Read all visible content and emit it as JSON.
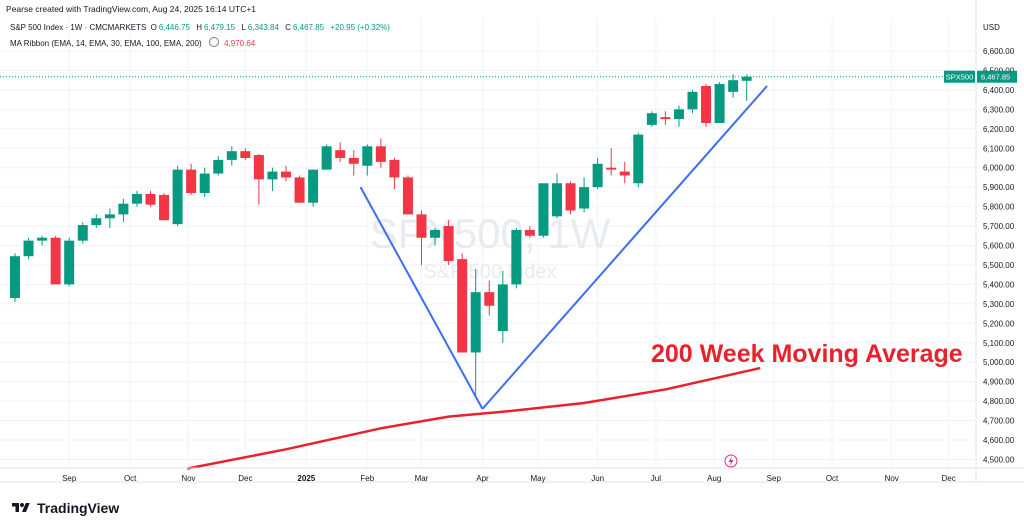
{
  "header": {
    "credit": "Pearse created with TradingView.com, Aug 24, 2025 16:14 UTC+1",
    "symbol_title": "S&P 500 Index · 1W · CMCMARKETS",
    "ohlc": {
      "open_label": "O",
      "open": "6,446.75",
      "high_label": "H",
      "high": "6,479.15",
      "low_label": "L",
      "low": "6,343.84",
      "close_label": "C",
      "close": "6,467.85",
      "change": "+20.95 (+0.32%)"
    },
    "indicator_name": "MA Ribbon (EMA, 14, EMA, 30, EMA, 100, EMA, 200)",
    "indicator_value": "4,970.64",
    "currency": "USD"
  },
  "watermark": {
    "symbol": "SPX500, 1W",
    "name": "S&P 500 Index"
  },
  "price_tag": {
    "symbol": "SPX500",
    "value": "6,467.85"
  },
  "annotation": {
    "text": "200 Week Moving Average"
  },
  "footer": {
    "brand": "TradingView"
  },
  "colors": {
    "up": "#089981",
    "down": "#f23645",
    "ma": "#e8222c",
    "trendline": "#3b6ef0",
    "grid": "#f0f3fa"
  },
  "icons": {
    "logo": "tradingview-logo-icon",
    "flash": "flash-icon",
    "visibility": "eye-slash-icon"
  },
  "chart_data": {
    "type": "candlestick",
    "y_axis": {
      "ticks": [
        "6,600.00",
        "6,500.00",
        "6,400.00",
        "6,300.00",
        "6,200.00",
        "6,100.00",
        "6,000.00",
        "5,900.00",
        "5,800.00",
        "5,700.00",
        "5,600.00",
        "5,500.00",
        "5,400.00",
        "5,300.00",
        "5,200.00",
        "5,100.00",
        "5,000.00",
        "4,900.00",
        "4,800.00",
        "4,700.00",
        "4,600.00",
        "4,500.00"
      ],
      "tick_values": [
        6600,
        6500,
        6400,
        6300,
        6200,
        6100,
        6000,
        5900,
        5800,
        5700,
        5600,
        5500,
        5400,
        5300,
        5200,
        5100,
        5000,
        4900,
        4800,
        4700,
        4600,
        4500
      ],
      "range": [
        4450,
        6700
      ]
    },
    "x_axis": {
      "start_week": "2024-08-05",
      "ticks": [
        {
          "label": "Sep",
          "week": 4
        },
        {
          "label": "Oct",
          "week": 8.5
        },
        {
          "label": "Nov",
          "week": 12.8
        },
        {
          "label": "Dec",
          "week": 17
        },
        {
          "label": "2025",
          "week": 21.5,
          "bold": true
        },
        {
          "label": "Feb",
          "week": 26
        },
        {
          "label": "Mar",
          "week": 30
        },
        {
          "label": "Apr",
          "week": 34.5
        },
        {
          "label": "May",
          "week": 38.6
        },
        {
          "label": "Jun",
          "week": 43
        },
        {
          "label": "Jul",
          "week": 47.3
        },
        {
          "label": "Aug",
          "week": 51.6
        },
        {
          "label": "Sep",
          "week": 56
        },
        {
          "label": "Oct",
          "week": 60.3
        },
        {
          "label": "Nov",
          "week": 64.7
        },
        {
          "label": "Dec",
          "week": 68.9
        }
      ]
    },
    "candles": [
      {
        "o": 5330,
        "h": 5560,
        "l": 5310,
        "c": 5545
      },
      {
        "o": 5545,
        "h": 5640,
        "l": 5530,
        "c": 5625
      },
      {
        "o": 5625,
        "h": 5650,
        "l": 5600,
        "c": 5640
      },
      {
        "o": 5640,
        "h": 5650,
        "l": 5400,
        "c": 5400
      },
      {
        "o": 5400,
        "h": 5640,
        "l": 5390,
        "c": 5625
      },
      {
        "o": 5625,
        "h": 5720,
        "l": 5610,
        "c": 5705
      },
      {
        "o": 5705,
        "h": 5760,
        "l": 5690,
        "c": 5740
      },
      {
        "o": 5740,
        "h": 5790,
        "l": 5690,
        "c": 5760
      },
      {
        "o": 5760,
        "h": 5840,
        "l": 5720,
        "c": 5815
      },
      {
        "o": 5815,
        "h": 5880,
        "l": 5800,
        "c": 5865
      },
      {
        "o": 5865,
        "h": 5880,
        "l": 5800,
        "c": 5810
      },
      {
        "o": 5860,
        "h": 5870,
        "l": 5730,
        "c": 5730
      },
      {
        "o": 5710,
        "h": 6010,
        "l": 5700,
        "c": 5990
      },
      {
        "o": 5990,
        "h": 6020,
        "l": 5860,
        "c": 5870
      },
      {
        "o": 5870,
        "h": 6000,
        "l": 5850,
        "c": 5970
      },
      {
        "o": 5970,
        "h": 6060,
        "l": 5960,
        "c": 6040
      },
      {
        "o": 6040,
        "h": 6110,
        "l": 6010,
        "c": 6085
      },
      {
        "o": 6085,
        "h": 6100,
        "l": 6040,
        "c": 6050
      },
      {
        "o": 6065,
        "h": 6070,
        "l": 5810,
        "c": 5940
      },
      {
        "o": 5940,
        "h": 6000,
        "l": 5880,
        "c": 5980
      },
      {
        "o": 5980,
        "h": 6010,
        "l": 5930,
        "c": 5950
      },
      {
        "o": 5950,
        "h": 5960,
        "l": 5820,
        "c": 5820
      },
      {
        "o": 5820,
        "h": 5990,
        "l": 5800,
        "c": 5990
      },
      {
        "o": 5990,
        "h": 6120,
        "l": 5990,
        "c": 6110
      },
      {
        "o": 6090,
        "h": 6130,
        "l": 6030,
        "c": 6050
      },
      {
        "o": 6050,
        "h": 6090,
        "l": 5960,
        "c": 6020
      },
      {
        "o": 6010,
        "h": 6120,
        "l": 5960,
        "c": 6110
      },
      {
        "o": 6110,
        "h": 6150,
        "l": 6000,
        "c": 6030
      },
      {
        "o": 6040,
        "h": 6050,
        "l": 5890,
        "c": 5950
      },
      {
        "o": 5950,
        "h": 5960,
        "l": 5760,
        "c": 5760
      },
      {
        "o": 5760,
        "h": 5780,
        "l": 5500,
        "c": 5640
      },
      {
        "o": 5640,
        "h": 5690,
        "l": 5600,
        "c": 5680
      },
      {
        "o": 5700,
        "h": 5730,
        "l": 5500,
        "c": 5520
      },
      {
        "o": 5530,
        "h": 5560,
        "l": 5050,
        "c": 5050
      },
      {
        "o": 5050,
        "h": 5480,
        "l": 4830,
        "c": 5360
      },
      {
        "o": 5360,
        "h": 5420,
        "l": 5240,
        "c": 5290
      },
      {
        "o": 5160,
        "h": 5470,
        "l": 5100,
        "c": 5400
      },
      {
        "o": 5400,
        "h": 5690,
        "l": 5380,
        "c": 5680
      },
      {
        "o": 5680,
        "h": 5700,
        "l": 5640,
        "c": 5650
      },
      {
        "o": 5650,
        "h": 5910,
        "l": 5640,
        "c": 5920
      },
      {
        "o": 5750,
        "h": 5970,
        "l": 5740,
        "c": 5920
      },
      {
        "o": 5920,
        "h": 5930,
        "l": 5760,
        "c": 5780
      },
      {
        "o": 5790,
        "h": 5950,
        "l": 5770,
        "c": 5900
      },
      {
        "o": 5900,
        "h": 6050,
        "l": 5890,
        "c": 6020
      },
      {
        "o": 6000,
        "h": 6100,
        "l": 5960,
        "c": 5990
      },
      {
        "o": 5980,
        "h": 6030,
        "l": 5920,
        "c": 5960
      },
      {
        "o": 5920,
        "h": 6180,
        "l": 5900,
        "c": 6170
      },
      {
        "o": 6220,
        "h": 6290,
        "l": 6210,
        "c": 6280
      },
      {
        "o": 6260,
        "h": 6290,
        "l": 6220,
        "c": 6250
      },
      {
        "o": 6250,
        "h": 6320,
        "l": 6210,
        "c": 6300
      },
      {
        "o": 6300,
        "h": 6400,
        "l": 6280,
        "c": 6390
      },
      {
        "o": 6420,
        "h": 6430,
        "l": 6210,
        "c": 6230
      },
      {
        "o": 6230,
        "h": 6440,
        "l": 6230,
        "c": 6430
      },
      {
        "o": 6390,
        "h": 6480,
        "l": 6360,
        "c": 6450
      },
      {
        "o": 6446.75,
        "h": 6479.15,
        "l": 6343.84,
        "c": 6467.85
      }
    ],
    "ma200": [
      {
        "week": 12.7,
        "value": 4453
      },
      {
        "week": 20,
        "value": 4552
      },
      {
        "week": 27,
        "value": 4660
      },
      {
        "week": 32,
        "value": 4720
      },
      {
        "week": 36,
        "value": 4745
      },
      {
        "week": 42,
        "value": 4790
      },
      {
        "week": 48,
        "value": 4860
      },
      {
        "week": 55,
        "value": 4970
      }
    ],
    "trendlines": [
      {
        "from": {
          "week": 25.5,
          "value": 5900
        },
        "to": {
          "week": 34.5,
          "value": 4760
        }
      },
      {
        "from": {
          "week": 34.5,
          "value": 4760
        },
        "to": {
          "week": 55.5,
          "value": 6420
        }
      }
    ],
    "last_price_line": 6467.85
  }
}
